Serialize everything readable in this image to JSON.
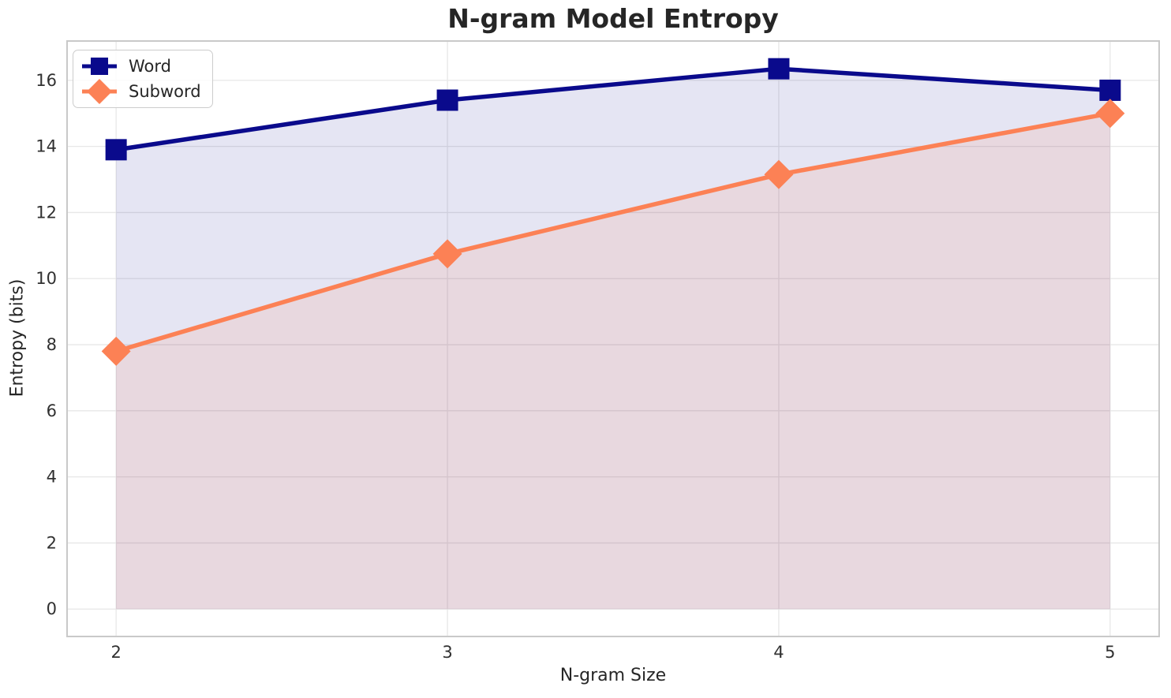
{
  "chart_data": {
    "type": "line",
    "title": "N-gram Model Entropy",
    "xlabel": "N-gram Size",
    "ylabel": "Entropy (bits)",
    "x": [
      2,
      3,
      4,
      5
    ],
    "series": [
      {
        "name": "Word",
        "values": [
          13.9,
          15.4,
          16.35,
          15.7
        ],
        "color": "#0a0a8c",
        "marker": "square",
        "fill_to_zero": true,
        "fill_color": "rgba(0,0,139,0.10)"
      },
      {
        "name": "Subword",
        "values": [
          7.8,
          10.75,
          13.15,
          15.0
        ],
        "color": "#fc8155",
        "marker": "diamond",
        "fill_to_zero": true,
        "fill_color": "rgba(255,127,80,0.12)"
      }
    ],
    "xlim": [
      1.852,
      5.148
    ],
    "ylim": [
      -0.83,
      17.19
    ],
    "xticks": [
      2,
      3,
      4,
      5
    ],
    "yticks": [
      0,
      2,
      4,
      6,
      8,
      10,
      12,
      14,
      16
    ],
    "grid": true,
    "legend_position": "upper left",
    "line_width": 5.5,
    "marker_size": 27,
    "grid_color": "#e7e7e7",
    "spine_color": "#c9c9c9",
    "tick_color": "#303030",
    "text_color": "#262626",
    "background": "#ffffff"
  }
}
